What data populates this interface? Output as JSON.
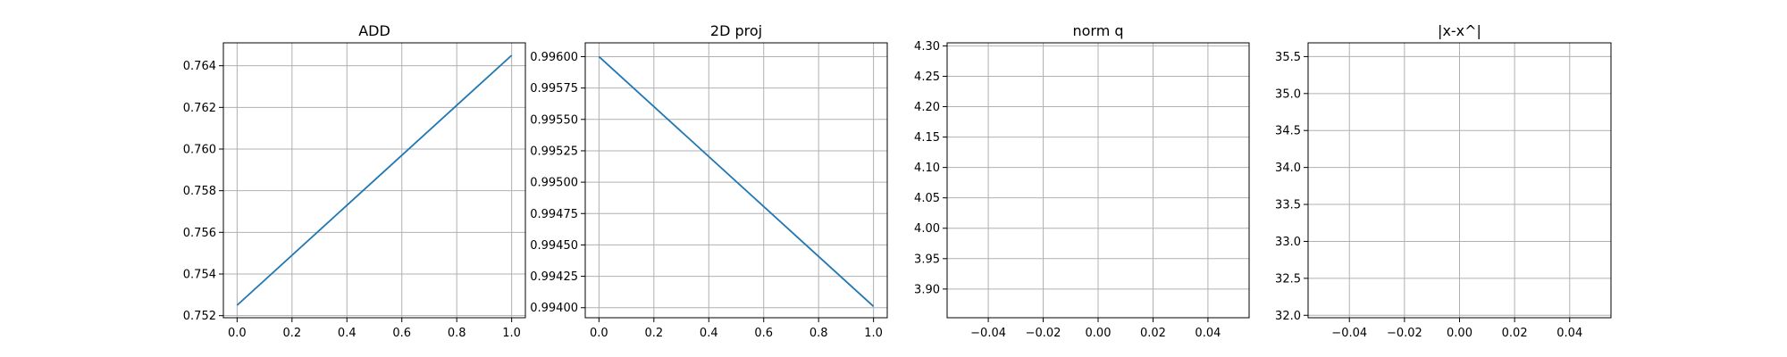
{
  "figure": {
    "background": "#ffffff",
    "axes_edge_color": "#000000",
    "grid_color": "#b0b0b0",
    "line_color": "#1f77b4"
  },
  "chart_data": [
    {
      "type": "line",
      "title": "ADD",
      "xlabel": "",
      "ylabel": "",
      "grid": true,
      "xlim": [
        -0.05,
        1.05
      ],
      "ylim": [
        0.7519,
        0.7651
      ],
      "xticks": [
        0.0,
        0.2,
        0.4,
        0.6,
        0.8,
        1.0
      ],
      "xtick_labels": [
        "0.0",
        "0.2",
        "0.4",
        "0.6",
        "0.8",
        "1.0"
      ],
      "yticks": [
        0.752,
        0.754,
        0.756,
        0.758,
        0.76,
        0.762,
        0.764
      ],
      "ytick_labels": [
        "0.752",
        "0.754",
        "0.756",
        "0.758",
        "0.760",
        "0.762",
        "0.764"
      ],
      "series": [
        {
          "x": [
            0.0,
            1.0
          ],
          "y": [
            0.7525,
            0.7645
          ]
        }
      ]
    },
    {
      "type": "line",
      "title": "2D proj",
      "xlabel": "",
      "ylabel": "",
      "grid": true,
      "xlim": [
        -0.05,
        1.05
      ],
      "ylim": [
        0.99392,
        0.99611
      ],
      "xticks": [
        0.0,
        0.2,
        0.4,
        0.6,
        0.8,
        1.0
      ],
      "xtick_labels": [
        "0.0",
        "0.2",
        "0.4",
        "0.6",
        "0.8",
        "1.0"
      ],
      "yticks": [
        0.994,
        0.99425,
        0.9945,
        0.99475,
        0.995,
        0.99525,
        0.9955,
        0.99575,
        0.996
      ],
      "ytick_labels": [
        "0.99400",
        "0.99425",
        "0.99450",
        "0.99475",
        "0.99500",
        "0.99525",
        "0.99550",
        "0.99575",
        "0.99600"
      ],
      "series": [
        {
          "x": [
            0.0,
            1.0
          ],
          "y": [
            0.996,
            0.99401
          ]
        }
      ]
    },
    {
      "type": "line",
      "title": "norm q",
      "xlabel": "",
      "ylabel": "",
      "grid": true,
      "xlim": [
        -0.055,
        0.055
      ],
      "ylim": [
        3.8528,
        4.305
      ],
      "xticks": [
        -0.04,
        -0.02,
        0.0,
        0.02,
        0.04
      ],
      "xtick_labels": [
        "−0.04",
        "−0.02",
        "0.00",
        "0.02",
        "0.04"
      ],
      "yticks": [
        3.9,
        3.95,
        4.0,
        4.05,
        4.1,
        4.15,
        4.2,
        4.25,
        4.3
      ],
      "ytick_labels": [
        "3.90",
        "3.95",
        "4.00",
        "4.05",
        "4.10",
        "4.15",
        "4.20",
        "4.25",
        "4.30"
      ],
      "series": [
        {
          "x": [],
          "y": []
        }
      ]
    },
    {
      "type": "line",
      "title": "|x-x^|",
      "xlabel": "",
      "ylabel": "",
      "grid": true,
      "xlim": [
        -0.055,
        0.055
      ],
      "ylim": [
        31.967,
        35.686
      ],
      "xticks": [
        -0.04,
        -0.02,
        0.0,
        0.02,
        0.04
      ],
      "xtick_labels": [
        "−0.04",
        "−0.02",
        "0.00",
        "0.02",
        "0.04"
      ],
      "yticks": [
        32.0,
        32.5,
        33.0,
        33.5,
        34.0,
        34.5,
        35.0,
        35.5
      ],
      "ytick_labels": [
        "32.0",
        "32.5",
        "33.0",
        "33.5",
        "34.0",
        "34.5",
        "35.0",
        "35.5"
      ],
      "series": [
        {
          "x": [],
          "y": []
        }
      ]
    }
  ]
}
